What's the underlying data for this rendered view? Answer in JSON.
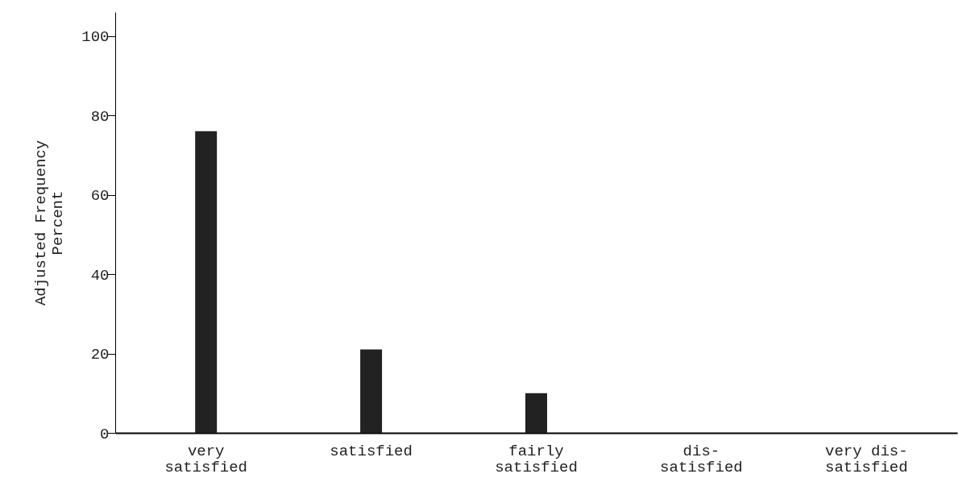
{
  "chart_data": {
    "type": "bar",
    "ylabel": "Adjusted Frequency\nPercent",
    "categories": [
      "very\nsatisfied",
      "satisfied",
      "fairly\nsatisfied",
      "dis-\nsatisfied",
      "very dis-\nsatisfied"
    ],
    "values": [
      76,
      21,
      10,
      0,
      0
    ],
    "color": "#222222",
    "ylim": [
      0,
      106
    ],
    "yticks": [
      0,
      20,
      40,
      60,
      80,
      100
    ],
    "grid": false
  }
}
